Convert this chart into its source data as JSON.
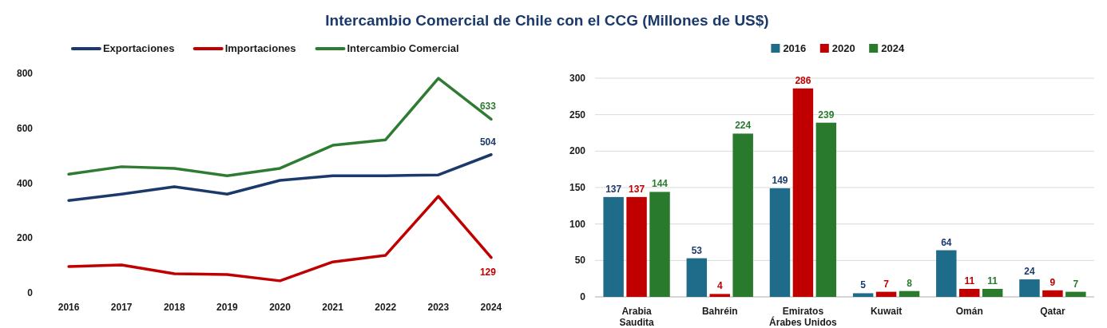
{
  "chart_data": [
    {
      "type": "line",
      "title": "Intercambio Comercial de Chile con el CCG (Millones de US$)",
      "categories": [
        "2016",
        "2017",
        "2018",
        "2019",
        "2020",
        "2021",
        "2022",
        "2023",
        "2024"
      ],
      "ylim": [
        0,
        800
      ],
      "yticks": [
        0,
        200,
        400,
        600,
        800
      ],
      "grid": false,
      "legend": "top",
      "marker": "none",
      "line_style": "solid",
      "series": [
        {
          "name": "Exportaciones",
          "color": "#1b3a6b",
          "values": [
            337,
            360,
            387,
            360,
            410,
            427,
            427,
            430,
            504
          ],
          "value_labels": [
            null,
            null,
            null,
            null,
            null,
            null,
            null,
            null,
            "504"
          ]
        },
        {
          "name": "Importaciones",
          "color": "#c00000",
          "values": [
            96,
            102,
            70,
            67,
            44,
            113,
            137,
            352,
            129
          ],
          "value_labels": [
            null,
            null,
            null,
            null,
            null,
            null,
            null,
            null,
            "129"
          ]
        },
        {
          "name": "Intercambio Comercial",
          "color": "#2e7b32",
          "values": [
            433,
            460,
            454,
            427,
            454,
            538,
            558,
            782,
            633
          ],
          "value_labels": [
            null,
            null,
            null,
            null,
            null,
            null,
            null,
            null,
            "633"
          ]
        }
      ]
    },
    {
      "type": "bar",
      "categories": [
        "Arabia Saudita",
        "Bahréin",
        "Emiratos Árabes Unidos",
        "Kuwait",
        "Omán",
        "Qatar"
      ],
      "ylim": [
        0,
        300
      ],
      "yticks": [
        0,
        50,
        100,
        150,
        200,
        250,
        300
      ],
      "grid": "y",
      "legend": "top",
      "data_labels": true,
      "series": [
        {
          "name": "2016",
          "color": "#1f6b8a",
          "values": [
            137,
            53,
            149,
            5,
            64,
            24
          ]
        },
        {
          "name": "2020",
          "color": "#c00000",
          "values": [
            137,
            4,
            286,
            7,
            11,
            9
          ]
        },
        {
          "name": "2024",
          "color": "#2a7a2e",
          "values": [
            144,
            224,
            239,
            8,
            11,
            7
          ]
        }
      ]
    }
  ]
}
